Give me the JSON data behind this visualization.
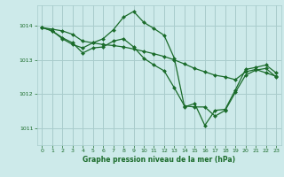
{
  "bg_color": "#cdeaea",
  "grid_color": "#a8cccc",
  "line_color": "#1a6b2a",
  "marker_color": "#1a6b2a",
  "title": "Graphe pression niveau de la mer (hPa)",
  "xlim": [
    -0.5,
    23.5
  ],
  "ylim": [
    1010.5,
    1014.6
  ],
  "yticks": [
    1011,
    1012,
    1013,
    1014
  ],
  "xticks": [
    0,
    1,
    2,
    3,
    4,
    5,
    6,
    7,
    8,
    9,
    10,
    11,
    12,
    13,
    14,
    15,
    16,
    17,
    18,
    19,
    20,
    21,
    22,
    23
  ],
  "series": [
    {
      "x": [
        0,
        1,
        2,
        3,
        4,
        5,
        6,
        7,
        8,
        9,
        10,
        11,
        12,
        13,
        14,
        15,
        16,
        17,
        18,
        19,
        20,
        21,
        22,
        23
      ],
      "y": [
        1013.95,
        1013.9,
        1013.85,
        1013.75,
        1013.55,
        1013.5,
        1013.45,
        1013.42,
        1013.38,
        1013.32,
        1013.25,
        1013.18,
        1013.1,
        1013.0,
        1012.88,
        1012.75,
        1012.65,
        1012.55,
        1012.5,
        1012.42,
        1012.65,
        1012.72,
        1012.62,
        1012.52
      ]
    },
    {
      "x": [
        0,
        1,
        2,
        3,
        4,
        5,
        6,
        7,
        8,
        9,
        10,
        11,
        12,
        13,
        14,
        15,
        16,
        17,
        18,
        19,
        20,
        21,
        22,
        23
      ],
      "y": [
        1013.95,
        1013.85,
        1013.65,
        1013.5,
        1013.2,
        1013.35,
        1013.38,
        1013.55,
        1013.62,
        1013.38,
        1013.05,
        1012.85,
        1012.68,
        1012.18,
        1011.65,
        1011.62,
        1011.62,
        1011.35,
        1011.52,
        1012.05,
        1012.55,
        1012.7,
        1012.75,
        1012.5
      ]
    },
    {
      "x": [
        0,
        1,
        2,
        3,
        4,
        5,
        6,
        7,
        8,
        9,
        10,
        11,
        12,
        13,
        14,
        15,
        16,
        17,
        18,
        19,
        20,
        21,
        22,
        23
      ],
      "y": [
        1013.95,
        1013.85,
        1013.62,
        1013.45,
        1013.35,
        1013.5,
        1013.62,
        1013.88,
        1014.25,
        1014.42,
        1014.1,
        1013.92,
        1013.72,
        1013.05,
        1011.62,
        1011.72,
        1011.08,
        1011.52,
        1011.55,
        1012.12,
        1012.72,
        1012.78,
        1012.85,
        1012.62
      ]
    }
  ]
}
